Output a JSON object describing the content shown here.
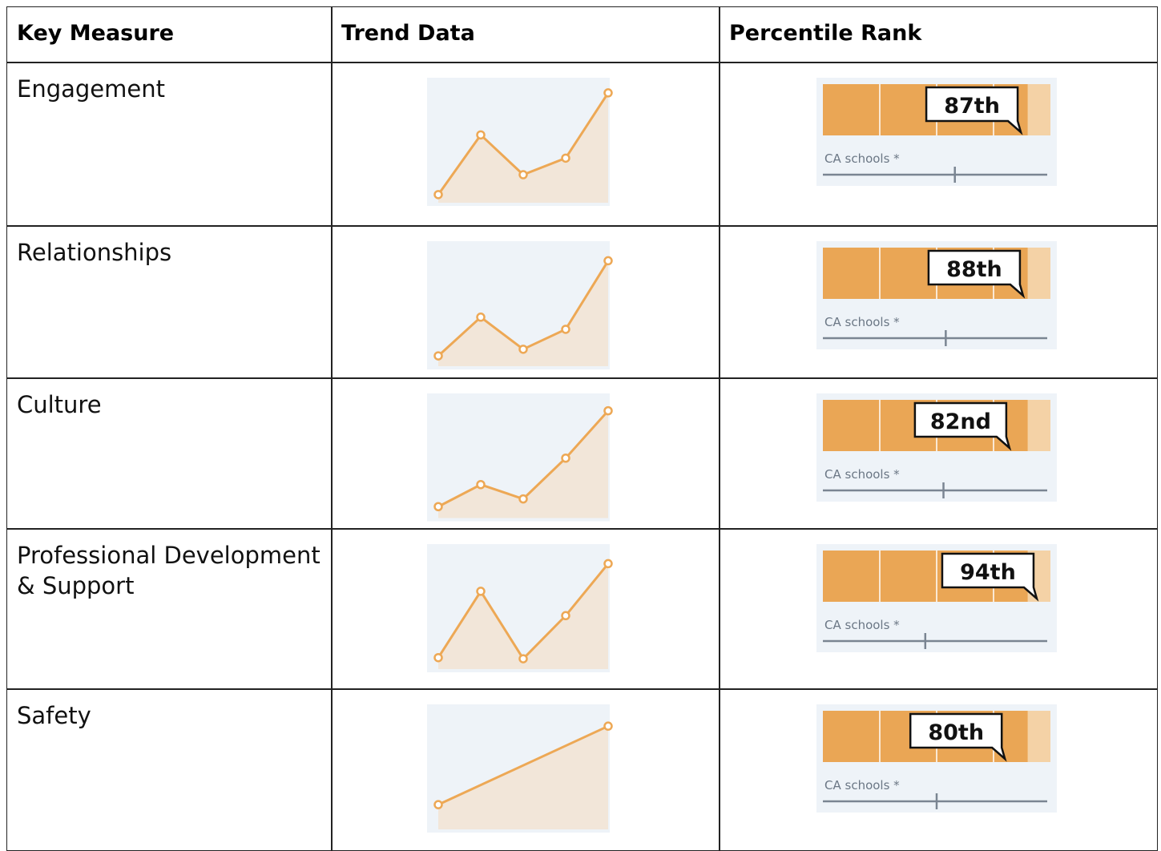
{
  "table": {
    "header": [
      "Key Measure",
      "Trend Data",
      "Percentile Rank"
    ],
    "trend_scale": [
      0,
      100
    ],
    "rows": [
      {
        "measure": "Engagement",
        "trend": [
          3,
          57,
          21,
          36,
          95
        ],
        "rank": {
          "value": 87,
          "label": "87th"
        },
        "ca_label": "CA schools *",
        "ca_marker": 58
      },
      {
        "measure": "Relationships",
        "trend": [
          5,
          40,
          11,
          29,
          91
        ],
        "rank": {
          "value": 88,
          "label": "88th"
        },
        "ca_label": "CA schools *",
        "ca_marker": 54
      },
      {
        "measure": "Culture",
        "trend": [
          6,
          26,
          13,
          50,
          93
        ],
        "rank": {
          "value": 82,
          "label": "82nd"
        },
        "ca_label": "CA schools *",
        "ca_marker": 53
      },
      {
        "measure": "Professional Development & Support",
        "trend": [
          6,
          66,
          5,
          44,
          91
        ],
        "rank": {
          "value": 94,
          "label": "94th"
        },
        "ca_label": "CA schools *",
        "ca_marker": 45
      },
      {
        "measure": "Safety",
        "trend": [
          18,
          89
        ],
        "rank": {
          "value": 80,
          "label": "80th"
        },
        "ca_label": "CA schools *",
        "ca_marker": 50
      }
    ]
  }
}
